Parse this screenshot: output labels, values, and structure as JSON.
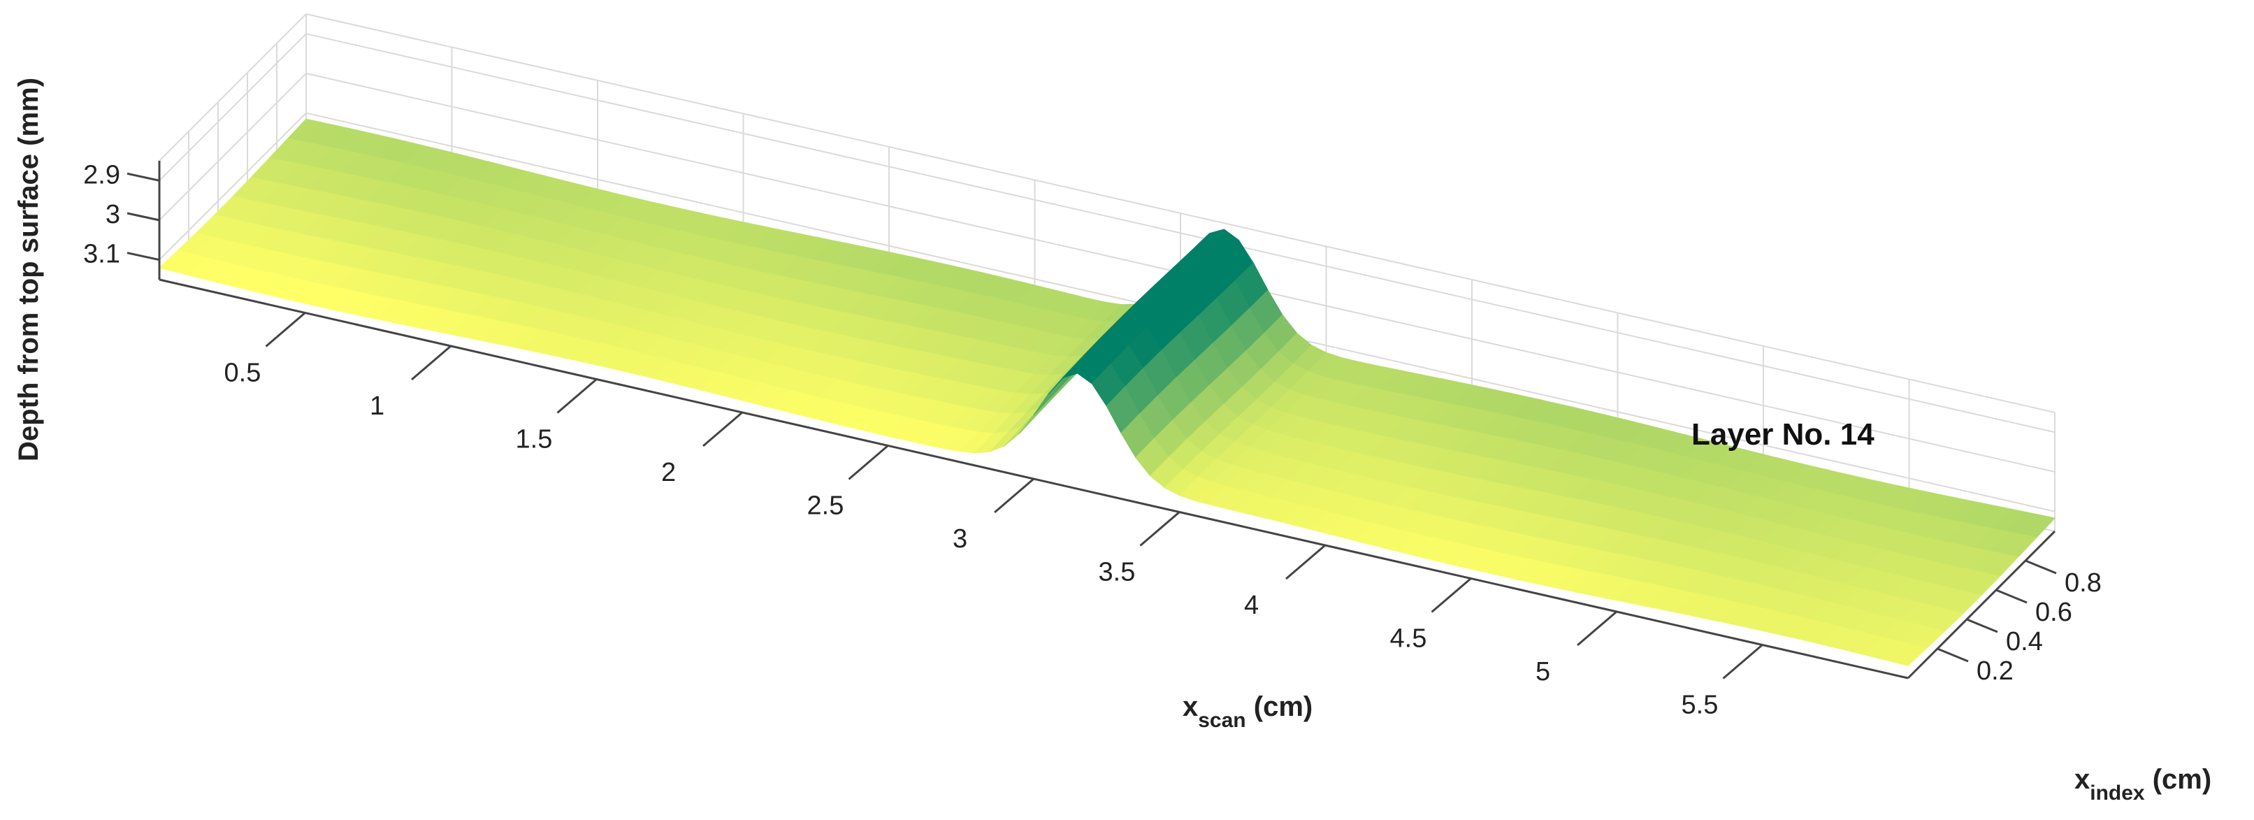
{
  "chart_data": {
    "type": "surface",
    "annotation": "Layer No. 14",
    "zlabel": "Depth from top surface (mm)",
    "xlabel_main": "x",
    "xlabel_sub": "scan",
    "xlabel_unit": " (cm)",
    "ylabel_main": "x",
    "ylabel_sub": "index",
    "ylabel_unit": " (cm)",
    "x_ticks": [
      "0.5",
      "1",
      "1.5",
      "2",
      "2.5",
      "3",
      "3.5",
      "4",
      "4.5",
      "5",
      "5.5"
    ],
    "y_ticks": [
      "0.2",
      "0.4",
      "0.6",
      "0.8"
    ],
    "z_ticks": [
      "2.9",
      "3",
      "3.1"
    ],
    "xlim": [
      0,
      6
    ],
    "ylim": [
      0,
      1
    ],
    "zlim": [
      3.15,
      2.85
    ],
    "z_reversed": true,
    "grid": true,
    "colormap": "summer",
    "baseline_depth": 3.12,
    "depression": {
      "center_x": 3.15,
      "peak_depth": 2.86,
      "width_cm": 0.4
    }
  }
}
